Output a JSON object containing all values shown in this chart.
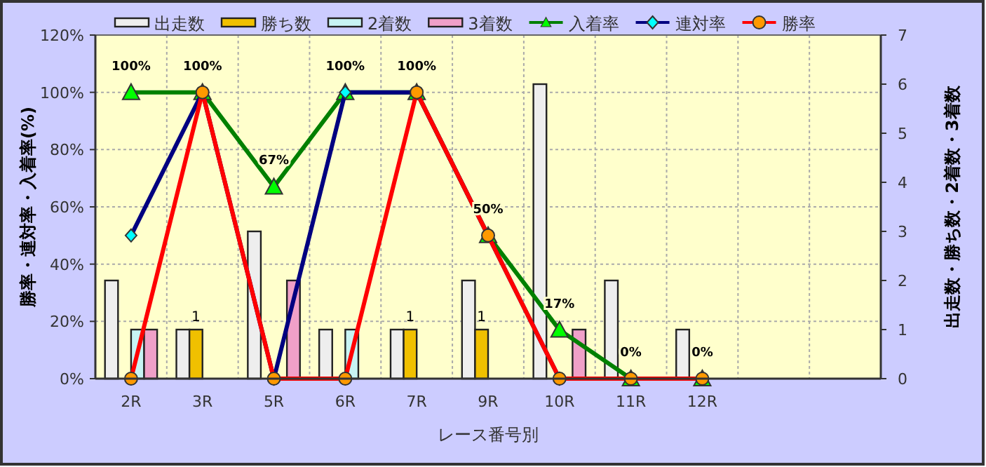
{
  "chart_data": {
    "type": "bar",
    "xlabel": "レース番号別",
    "ylabel": "勝率・連対率・入着率(%)",
    "y2label": "出走数・勝ち数・2着数・3着数",
    "categories": [
      "2R",
      "3R",
      "5R",
      "6R",
      "7R",
      "9R",
      "10R",
      "11R",
      "12R",
      null,
      null
    ],
    "series": [
      {
        "name": "出走数",
        "axis": "y2",
        "color": "#eeeeee",
        "values": [
          2,
          1,
          3,
          1,
          1,
          2,
          6,
          2,
          1,
          null,
          null
        ]
      },
      {
        "name": "勝ち数",
        "axis": "y2",
        "color": "#f0c000",
        "values": [
          0,
          1,
          0,
          0,
          1,
          1,
          0,
          0,
          0,
          null,
          null
        ],
        "value_labels": [
          null,
          "1",
          null,
          null,
          "1",
          "1",
          null,
          null,
          null,
          null,
          null
        ]
      },
      {
        "name": "2着数",
        "axis": "y2",
        "color": "#c8f4f4",
        "values": [
          1,
          0,
          0,
          1,
          0,
          0,
          0,
          0,
          0,
          null,
          null
        ]
      },
      {
        "name": "3着数",
        "axis": "y2",
        "color": "#f0a0c8",
        "values": [
          1,
          0,
          2,
          0,
          0,
          0,
          1,
          0,
          0,
          null,
          null
        ]
      },
      {
        "name": "入着率",
        "type": "line",
        "color": "#008000",
        "marker": "triangle",
        "colors": [
          "#00ff00",
          "#00ff00",
          "#00ff00",
          "#00ff00",
          "#00ff00",
          "#00ff00",
          "#00ff00",
          "#00ff00",
          "#00ff00",
          null,
          null
        ],
        "values": [
          100,
          100,
          67,
          100,
          100,
          50,
          17,
          0,
          0,
          null,
          null
        ],
        "value_labels": [
          "100%",
          "100%",
          "67%",
          "100%",
          "100%",
          "50%",
          "17%",
          "0%",
          "0%",
          null,
          null
        ]
      },
      {
        "name": "連対率",
        "type": "line",
        "color": "#000080",
        "marker": "diamond",
        "colors": [
          "#00ffff",
          "#00ffff",
          "#00ffff",
          "#00ffff",
          "#00ffff",
          "#00ffff",
          "#00ffff",
          "#00ffff",
          "#00ffff",
          null,
          null
        ],
        "values": [
          50,
          100,
          0,
          100,
          100,
          50,
          0,
          0,
          0,
          null,
          null
        ]
      },
      {
        "name": "勝率",
        "type": "line",
        "color": "#ff0000",
        "marker": "circle",
        "colors": [
          "#ff9900",
          "#ff9900",
          "#ff9900",
          "#ff9900",
          "#ff9900",
          "#ff9900",
          "#ff9900",
          "#ff9900",
          "#ff9900",
          null,
          null
        ],
        "values": [
          0,
          100,
          0,
          0,
          100,
          50,
          0,
          0,
          0,
          null,
          null
        ]
      }
    ],
    "ylim": [
      0,
      120
    ],
    "yticks": [
      {
        "value": 0,
        "label": "0%"
      },
      {
        "value": 20,
        "label": "20%"
      },
      {
        "value": 40,
        "label": "40%"
      },
      {
        "value": 60,
        "label": "60%"
      },
      {
        "value": 80,
        "label": "80%"
      },
      {
        "value": 100,
        "label": "100%"
      },
      {
        "value": 120,
        "label": "120%"
      }
    ],
    "y2lim": [
      0,
      7
    ],
    "y2ticks": [
      0,
      1,
      2,
      3,
      4,
      5,
      6,
      7
    ],
    "grid": true,
    "legend": "top"
  }
}
